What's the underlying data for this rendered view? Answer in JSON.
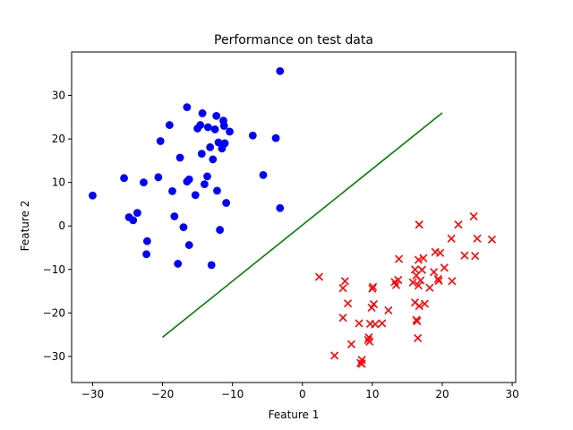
{
  "chart_data": {
    "type": "scatter",
    "title": "Performance on test data",
    "xlabel": "Feature 1",
    "ylabel": "Feature 2",
    "xlim": [
      -33,
      30.5
    ],
    "ylim": [
      -36,
      40
    ],
    "xticks": [
      -30,
      -20,
      -10,
      0,
      10,
      20,
      30
    ],
    "yticks": [
      -30,
      -20,
      -10,
      0,
      10,
      20,
      30
    ],
    "grid": false,
    "series": [
      {
        "marker": "circle",
        "color": "#0000ff",
        "points": [
          [
            -30,
            7
          ],
          [
            -25.5,
            11
          ],
          [
            -24.8,
            2
          ],
          [
            -24.2,
            1.3
          ],
          [
            -23.6,
            3
          ],
          [
            -22.7,
            10
          ],
          [
            -22.2,
            -3.5
          ],
          [
            -22.3,
            -6.5
          ],
          [
            -20.6,
            11.2
          ],
          [
            -20.3,
            19.5
          ],
          [
            -19,
            23.2
          ],
          [
            -18.6,
            8
          ],
          [
            -18.3,
            2.2
          ],
          [
            -17.8,
            -8.7
          ],
          [
            -17.5,
            15.7
          ],
          [
            -17,
            -0.3
          ],
          [
            -16.5,
            27.3
          ],
          [
            -16.5,
            10.2
          ],
          [
            -16.2,
            10.7
          ],
          [
            -16.2,
            -4.4
          ],
          [
            -15.3,
            7.1
          ],
          [
            -15,
            22.4
          ],
          [
            -14.6,
            23.2
          ],
          [
            -14.4,
            16.6
          ],
          [
            -14.3,
            25.9
          ],
          [
            -14,
            9.6
          ],
          [
            -13.6,
            11.4
          ],
          [
            -13.5,
            22.7
          ],
          [
            -13.2,
            18.1
          ],
          [
            -13,
            -9
          ],
          [
            -12.8,
            15.3
          ],
          [
            -12.5,
            22.2
          ],
          [
            -12.3,
            25.3
          ],
          [
            -12.2,
            8.1
          ],
          [
            -12,
            19.2
          ],
          [
            -11.8,
            -0.9
          ],
          [
            -11.5,
            17.8
          ],
          [
            -11.3,
            24.2
          ],
          [
            -11.2,
            23
          ],
          [
            -11.1,
            19
          ],
          [
            -10.9,
            5.3
          ],
          [
            -10.4,
            21.7
          ],
          [
            -7.1,
            20.8
          ],
          [
            -5.6,
            11.7
          ],
          [
            -3.8,
            20.2
          ],
          [
            -3.2,
            4.1
          ],
          [
            -3.2,
            35.6
          ]
        ]
      },
      {
        "marker": "x",
        "color": "#ff0000",
        "points": [
          [
            2.4,
            -11.7
          ],
          [
            4.6,
            -29.8
          ],
          [
            5.8,
            -14.3
          ],
          [
            5.8,
            -21.1
          ],
          [
            6.1,
            -12.7
          ],
          [
            6.5,
            -17.8
          ],
          [
            7,
            -27.2
          ],
          [
            8.1,
            -22.4
          ],
          [
            8.3,
            -31.5
          ],
          [
            8.5,
            -30.8
          ],
          [
            8.5,
            -31.7
          ],
          [
            9.4,
            -26.2
          ],
          [
            9.5,
            -25.6
          ],
          [
            9.6,
            -26.6
          ],
          [
            9.7,
            -22.5
          ],
          [
            9.9,
            -18.8
          ],
          [
            10,
            -14.4
          ],
          [
            10.1,
            -14
          ],
          [
            10.2,
            -18
          ],
          [
            10.4,
            -22.6
          ],
          [
            11.4,
            -22.4
          ],
          [
            12.3,
            -19.4
          ],
          [
            13.2,
            -12.9
          ],
          [
            13.4,
            -13.6
          ],
          [
            13.7,
            -12.4
          ],
          [
            13.8,
            -7.6
          ],
          [
            15.8,
            -13
          ],
          [
            16.1,
            -10
          ],
          [
            16.1,
            -17.6
          ],
          [
            16.3,
            -11.4
          ],
          [
            16.3,
            -21.6
          ],
          [
            16.4,
            -21.9
          ],
          [
            16.5,
            -25.8
          ],
          [
            16.6,
            -7.8
          ],
          [
            16.6,
            -13.7
          ],
          [
            16.7,
            0.3
          ],
          [
            16.7,
            -18.4
          ],
          [
            16.9,
            -12.5
          ],
          [
            17.1,
            -10.1
          ],
          [
            17.3,
            -7.4
          ],
          [
            17.5,
            -17.9
          ],
          [
            18.2,
            -14.2
          ],
          [
            18.8,
            -10.6
          ],
          [
            19,
            -6
          ],
          [
            19.4,
            -12.2
          ],
          [
            19.5,
            -12.6
          ],
          [
            19.7,
            -6.2
          ],
          [
            20.3,
            -9.6
          ],
          [
            21.3,
            -2.9
          ],
          [
            21.4,
            -12.7
          ],
          [
            22.3,
            0.3
          ],
          [
            23.2,
            -6.8
          ],
          [
            24.5,
            2.2
          ],
          [
            24.7,
            -6.9
          ],
          [
            25,
            -2.9
          ],
          [
            27.1,
            -3.1
          ]
        ]
      },
      {
        "marker": "line",
        "color": "#008000",
        "points": [
          [
            -20,
            -25.6
          ],
          [
            20,
            26
          ]
        ]
      }
    ]
  }
}
